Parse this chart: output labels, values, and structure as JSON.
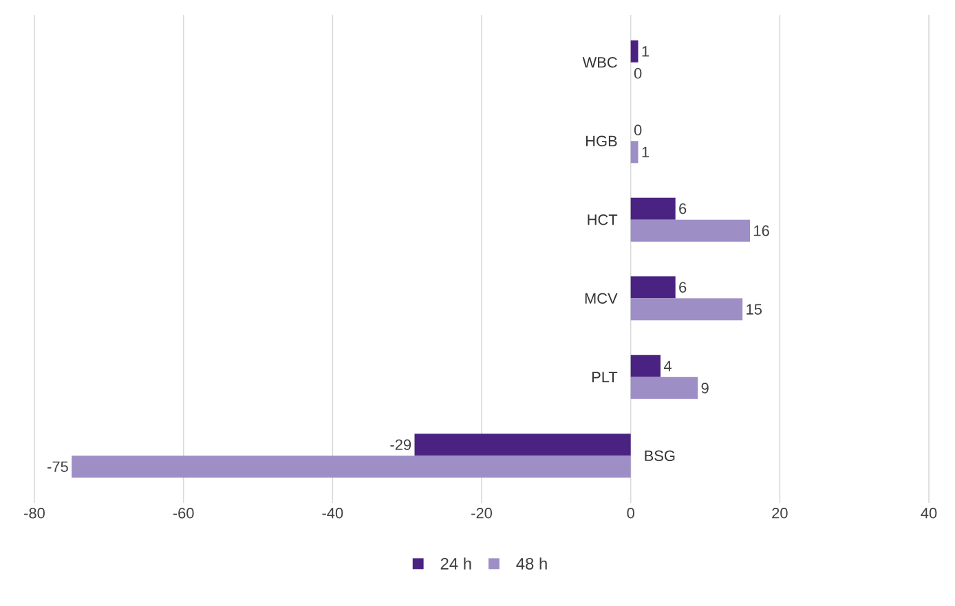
{
  "chart_data": {
    "type": "bar",
    "orientation": "horizontal",
    "categories": [
      "WBC",
      "HGB",
      "HCT",
      "MCV",
      "PLT",
      "BSG"
    ],
    "series": [
      {
        "name": "24 h",
        "color": "#4a2382",
        "values": [
          1,
          0,
          6,
          6,
          4,
          -29
        ]
      },
      {
        "name": "48 h",
        "color": "#9e8ec6",
        "values": [
          0,
          1,
          16,
          15,
          9,
          -75
        ]
      }
    ],
    "xlim": [
      -80,
      40
    ],
    "xticks": [
      -80,
      -60,
      -40,
      -20,
      0,
      20,
      40
    ],
    "grid": "x",
    "legend": "bottom",
    "data_labels": true
  }
}
